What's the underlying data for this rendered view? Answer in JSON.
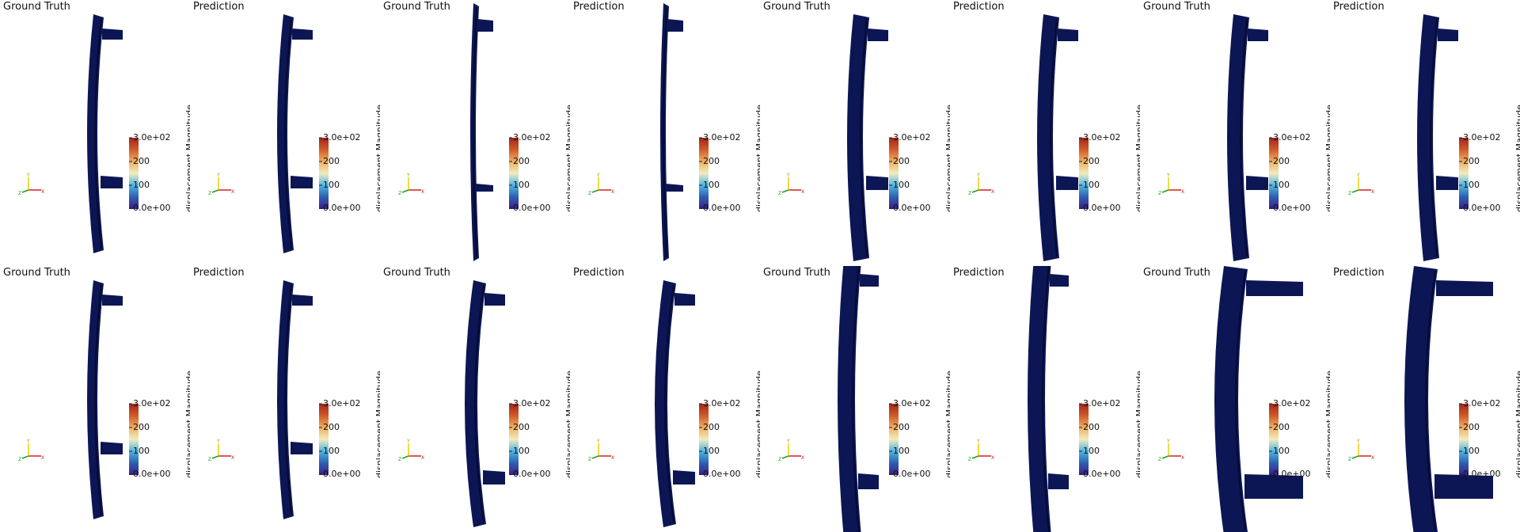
{
  "colors": {
    "mesh": "#0c1654",
    "mesh_dark": "#060b33",
    "colormap": [
      "#3b1d8a",
      "#2c5fb0",
      "#4fb4e0",
      "#f0ecc0",
      "#f0b060",
      "#d05a2a",
      "#a0261c"
    ]
  },
  "colorbar": {
    "title": "displacement Magnitude",
    "ticks": [
      "3.0e+02",
      "200",
      "100",
      "0.0e+00"
    ],
    "range": [
      0,
      300
    ]
  },
  "orientation_axes": {
    "x_label": "X",
    "y_label": "Y",
    "z_label": "Z"
  },
  "panels": [
    {
      "title": "Ground Truth",
      "shape": "thin-curved"
    },
    {
      "title": "Prediction",
      "shape": "thin-curved"
    },
    {
      "title": "Ground Truth",
      "shape": "very-thin"
    },
    {
      "title": "Prediction",
      "shape": "very-thin"
    },
    {
      "title": "Ground Truth",
      "shape": "thick"
    },
    {
      "title": "Prediction",
      "shape": "thick"
    },
    {
      "title": "Ground Truth",
      "shape": "thick"
    },
    {
      "title": "Prediction",
      "shape": "thick"
    },
    {
      "title": "Ground Truth",
      "shape": "thin-curved"
    },
    {
      "title": "Prediction",
      "shape": "thin-curved"
    },
    {
      "title": "Ground Truth",
      "shape": "medium-curved"
    },
    {
      "title": "Prediction",
      "shape": "medium-curved"
    },
    {
      "title": "Ground Truth",
      "shape": "large-offset"
    },
    {
      "title": "Prediction",
      "shape": "large-offset"
    },
    {
      "title": "Ground Truth",
      "shape": "perspective"
    },
    {
      "title": "Prediction",
      "shape": "perspective"
    }
  ]
}
